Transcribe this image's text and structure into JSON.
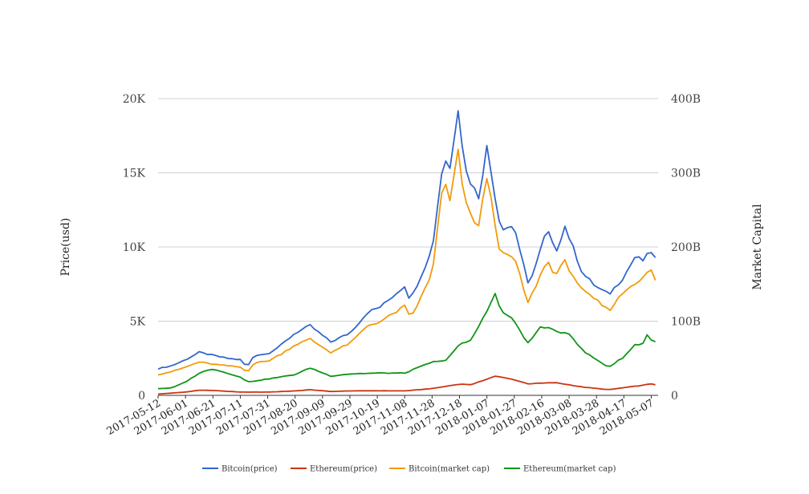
{
  "chart_data": {
    "type": "line",
    "title": "",
    "ylabel_left": "Price(usd)",
    "ylabel_right": "Market Capital",
    "ylim_left": [
      0,
      20000
    ],
    "ylim_right": [
      0,
      400000000000
    ],
    "yticks_left": [
      {
        "value": 0,
        "label": "0"
      },
      {
        "value": 5000,
        "label": "5K"
      },
      {
        "value": 10000,
        "label": "10K"
      },
      {
        "value": 15000,
        "label": "15K"
      },
      {
        "value": 20000,
        "label": "20K"
      }
    ],
    "yticks_right": [
      {
        "value": 0,
        "label": "0"
      },
      {
        "value": 100000000000,
        "label": "100B"
      },
      {
        "value": 200000000000,
        "label": "200B"
      },
      {
        "value": 300000000000,
        "label": "300B"
      },
      {
        "value": 400000000000,
        "label": "400B"
      }
    ],
    "xlim": [
      "2017-05-12",
      "2018-05-12"
    ],
    "xticks": [
      "2017-05-12",
      "2017-06-01",
      "2017-06-21",
      "2017-07-11",
      "2017-07-31",
      "2017-08-20",
      "2017-09-09",
      "2017-09-29",
      "2017-10-19",
      "2017-11-08",
      "2017-11-28",
      "2017-12-18",
      "2018-01-07",
      "2018-01-27",
      "2018-02-16",
      "2018-03-08",
      "2018-03-28",
      "2018-04-17",
      "2018-05-07"
    ],
    "grid": true,
    "legend_position": "bottom",
    "series": [
      {
        "name": "Bitcoin(price)",
        "color": "#3366cc",
        "axis": "left",
        "x": [
          "2017-05-12",
          "2017-05-22",
          "2017-06-01",
          "2017-06-11",
          "2017-06-21",
          "2017-07-01",
          "2017-07-11",
          "2017-07-16",
          "2017-07-21",
          "2017-07-31",
          "2017-08-10",
          "2017-08-20",
          "2017-08-31",
          "2017-09-04",
          "2017-09-15",
          "2017-09-29",
          "2017-10-12",
          "2017-10-22",
          "2017-11-08",
          "2017-11-12",
          "2017-11-19",
          "2017-11-28",
          "2017-12-07",
          "2017-12-10",
          "2017-12-17",
          "2017-12-22",
          "2017-12-27",
          "2018-01-01",
          "2018-01-07",
          "2018-01-17",
          "2018-01-27",
          "2018-02-06",
          "2018-02-11",
          "2018-02-20",
          "2018-02-26",
          "2018-03-05",
          "2018-03-18",
          "2018-03-28",
          "2018-04-06",
          "2018-04-17",
          "2018-04-25",
          "2018-05-01",
          "2018-05-07",
          "2018-05-10"
        ],
        "values": [
          1800,
          2000,
          2400,
          2900,
          2700,
          2500,
          2400,
          1900,
          2700,
          2800,
          3400,
          4200,
          4700,
          4400,
          3600,
          4200,
          5600,
          6000,
          7400,
          6400,
          7900,
          9800,
          16500,
          14600,
          19500,
          15300,
          14200,
          13400,
          16700,
          11300,
          11400,
          7500,
          8600,
          11200,
          9600,
          11400,
          8200,
          7300,
          6800,
          8000,
          9300,
          9100,
          9700,
          9200
        ]
      },
      {
        "name": "Ethereum(price)",
        "color": "#cc3311",
        "axis": "left",
        "x": [
          "2017-05-12",
          "2017-06-01",
          "2017-06-11",
          "2017-06-21",
          "2017-07-11",
          "2017-07-31",
          "2017-08-20",
          "2017-08-31",
          "2017-09-15",
          "2017-09-29",
          "2017-10-19",
          "2017-11-08",
          "2017-11-28",
          "2017-12-18",
          "2017-12-27",
          "2018-01-07",
          "2018-01-13",
          "2018-01-27",
          "2018-02-06",
          "2018-02-26",
          "2018-03-18",
          "2018-04-06",
          "2018-04-17",
          "2018-05-01",
          "2018-05-07",
          "2018-05-10"
        ],
        "values": [
          90,
          220,
          350,
          330,
          220,
          220,
          300,
          380,
          260,
          300,
          310,
          300,
          460,
          760,
          720,
          1100,
          1300,
          1050,
          780,
          860,
          560,
          380,
          520,
          680,
          780,
          720
        ]
      },
      {
        "name": "Bitcoin(market cap)",
        "color": "#f29b0a",
        "axis": "right",
        "x": [
          "2017-05-12",
          "2017-05-22",
          "2017-06-01",
          "2017-06-11",
          "2017-06-21",
          "2017-07-01",
          "2017-07-11",
          "2017-07-16",
          "2017-07-21",
          "2017-07-31",
          "2017-08-10",
          "2017-08-20",
          "2017-08-31",
          "2017-09-04",
          "2017-09-15",
          "2017-09-29",
          "2017-10-12",
          "2017-10-22",
          "2017-11-08",
          "2017-11-12",
          "2017-11-19",
          "2017-11-28",
          "2017-12-07",
          "2017-12-10",
          "2017-12-17",
          "2017-12-22",
          "2017-12-27",
          "2018-01-01",
          "2018-01-07",
          "2018-01-17",
          "2018-01-27",
          "2018-02-06",
          "2018-02-11",
          "2018-02-20",
          "2018-02-26",
          "2018-03-05",
          "2018-03-18",
          "2018-03-28",
          "2018-04-06",
          "2018-04-17",
          "2018-05-01",
          "2018-05-07",
          "2018-05-10"
        ],
        "values": [
          28000000000,
          32000000000,
          38000000000,
          45000000000,
          42000000000,
          40000000000,
          38000000000,
          31000000000,
          44000000000,
          46000000000,
          56000000000,
          68000000000,
          76000000000,
          71000000000,
          58000000000,
          70000000000,
          94000000000,
          100000000000,
          120000000000,
          104000000000,
          128000000000,
          164000000000,
          300000000000,
          250000000000,
          327000000000,
          260000000000,
          240000000000,
          228000000000,
          295000000000,
          190000000000,
          186000000000,
          124000000000,
          145000000000,
          182000000000,
          162000000000,
          180000000000,
          140000000000,
          128000000000,
          114000000000,
          140000000000,
          160000000000,
          168000000000,
          155000000000
        ]
      },
      {
        "name": "Ethereum(market cap)",
        "color": "#109618",
        "axis": "right",
        "x": [
          "2017-05-12",
          "2017-05-22",
          "2017-06-01",
          "2017-06-11",
          "2017-06-21",
          "2017-07-01",
          "2017-07-11",
          "2017-07-16",
          "2017-07-31",
          "2017-08-20",
          "2017-08-31",
          "2017-09-15",
          "2017-09-29",
          "2017-10-19",
          "2017-11-08",
          "2017-11-28",
          "2017-12-07",
          "2017-12-18",
          "2017-12-27",
          "2018-01-07",
          "2018-01-13",
          "2018-01-17",
          "2018-01-27",
          "2018-02-06",
          "2018-02-16",
          "2018-02-26",
          "2018-03-08",
          "2018-03-18",
          "2018-03-28",
          "2018-04-06",
          "2018-04-17",
          "2018-04-25",
          "2018-05-01",
          "2018-05-04",
          "2018-05-07",
          "2018-05-10"
        ],
        "values": [
          9000000000,
          10000000000,
          18000000000,
          30000000000,
          36000000000,
          30000000000,
          25000000000,
          18000000000,
          22000000000,
          28000000000,
          37000000000,
          26000000000,
          29000000000,
          30000000000,
          30000000000,
          45000000000,
          46000000000,
          68000000000,
          75000000000,
          115000000000,
          136000000000,
          115000000000,
          100000000000,
          70000000000,
          94000000000,
          86000000000,
          84000000000,
          60000000000,
          48000000000,
          38000000000,
          52000000000,
          68000000000,
          70000000000,
          82000000000,
          75000000000,
          72000000000
        ]
      }
    ]
  }
}
